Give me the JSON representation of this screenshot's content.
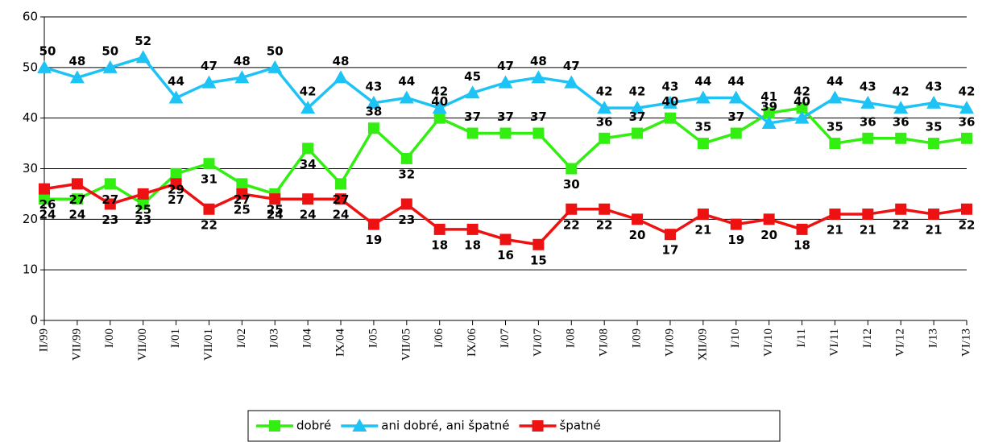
{
  "chart_data": {
    "type": "line",
    "categories": [
      "II/99",
      "VII/99",
      "I/00",
      "VII/00",
      "I/01",
      "VII/01",
      "I/02",
      "I/03",
      "I/04",
      "IX/04",
      "I/05",
      "VII/05",
      "I/06",
      "IX/06",
      "I/07",
      "VI/07",
      "I/08",
      "VI/08",
      "I/09",
      "VI/09",
      "XII/09",
      "I/10",
      "VI/10",
      "I/11",
      "VI/11",
      "I/12",
      "VI/12",
      "I/13",
      "VI/13"
    ],
    "series": [
      {
        "name": "dobré",
        "color": "#33ee11",
        "marker": "square",
        "values": [
          24,
          24,
          27,
          23,
          29,
          31,
          27,
          25,
          34,
          27,
          38,
          32,
          40,
          37,
          37,
          37,
          30,
          36,
          37,
          40,
          35,
          37,
          41,
          42,
          35,
          36,
          36,
          35,
          36
        ]
      },
      {
        "name": "ani dobré, ani špatné",
        "color": "#1ec3f5",
        "marker": "triangle",
        "values": [
          50,
          48,
          50,
          52,
          44,
          47,
          48,
          50,
          42,
          48,
          43,
          44,
          42,
          45,
          47,
          48,
          47,
          42,
          42,
          43,
          44,
          44,
          39,
          40,
          44,
          43,
          42,
          43,
          42
        ]
      },
      {
        "name": "špatné",
        "color": "#ee1111",
        "marker": "square",
        "values": [
          26,
          27,
          23,
          25,
          27,
          22,
          25,
          24,
          24,
          24,
          19,
          23,
          18,
          18,
          16,
          15,
          22,
          22,
          20,
          17,
          21,
          19,
          20,
          18,
          21,
          21,
          22,
          21,
          22
        ]
      }
    ],
    "ylim": [
      0,
      60
    ],
    "yticks": [
      0,
      10,
      20,
      30,
      40,
      50,
      60
    ],
    "grid": true,
    "legend": "bottom"
  }
}
